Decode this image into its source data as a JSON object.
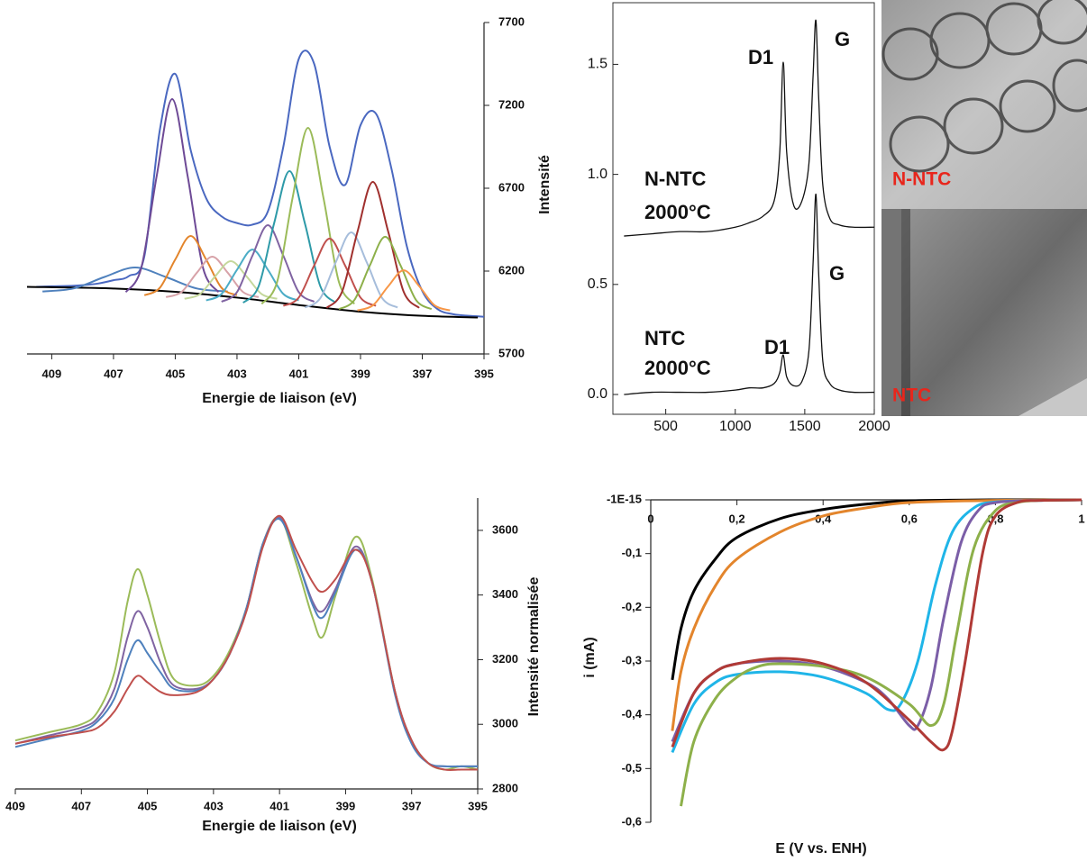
{
  "chart_data": [
    {
      "type": "line",
      "xlabel": "Energie de liaison (eV)",
      "ylabel": "Intensité",
      "xlim": [
        409.8,
        395
      ],
      "xticks": [
        409,
        407,
        405,
        403,
        401,
        399,
        397,
        395
      ],
      "ylim": [
        5700,
        7700
      ],
      "yticks": [
        5700,
        6200,
        6700,
        7200,
        7700
      ],
      "series": [
        {
          "color": "#4a68c0",
          "x": [
            409.5,
            409,
            408.5,
            408,
            407.5,
            407,
            406.5,
            406,
            405.5,
            405,
            404.5,
            404,
            403.5,
            403,
            402.5,
            402,
            401.5,
            401,
            400.5,
            400,
            399.5,
            399,
            398.5,
            398,
            397.5,
            397,
            396.5,
            396,
            395.5,
            395
          ],
          "values": [
            6105,
            6108,
            6110,
            6115,
            6125,
            6145,
            6170,
            6290,
            7050,
            7390,
            6930,
            6640,
            6530,
            6490,
            6480,
            6560,
            6950,
            7480,
            7450,
            6950,
            6720,
            7080,
            7150,
            6820,
            6350,
            6080,
            5970,
            5940,
            5930,
            5925
          ]
        },
        {
          "color": "#000000",
          "x": [
            409.8,
            407,
            405,
            403,
            401,
            399,
            397,
            395.2
          ],
          "values": [
            6105,
            6095,
            6075,
            6040,
            5995,
            5955,
            5930,
            5920
          ]
        },
        {
          "color": "#4f81bd",
          "x": [
            409.3,
            408.3,
            407.3,
            406.3,
            405.3,
            404.3,
            403.3
          ],
          "values": [
            6077,
            6095,
            6164,
            6222,
            6164,
            6095,
            6077
          ]
        },
        {
          "color": "#6e4a96",
          "x": [
            406.6,
            406.1,
            405.6,
            405.1,
            404.6,
            404.1,
            403.6
          ],
          "values": [
            6073,
            6219,
            6775,
            7238,
            6775,
            6219,
            6073
          ]
        },
        {
          "color": "#e3852c",
          "x": [
            406,
            405.5,
            405,
            404.5,
            404,
            403.5,
            403
          ],
          "values": [
            6054,
            6099,
            6270,
            6412,
            6270,
            6099,
            6054
          ]
        },
        {
          "color": "#d7a2a8",
          "x": [
            405.3,
            404.8,
            404.3,
            403.8,
            403.3,
            402.8,
            402.3
          ],
          "values": [
            6043,
            6073,
            6190,
            6287,
            6190,
            6073,
            6043
          ]
        },
        {
          "color": "#c4d79b",
          "x": [
            404.7,
            404.2,
            403.7,
            403.2,
            402.7,
            402.2,
            401.7
          ],
          "values": [
            6033,
            6061,
            6170,
            6260,
            6170,
            6061,
            6033
          ]
        },
        {
          "color": "#4bacc6",
          "x": [
            404,
            403.5,
            403,
            402.5,
            402,
            401.5,
            401
          ],
          "values": [
            6023,
            6062,
            6208,
            6330,
            6208,
            6062,
            6023
          ]
        },
        {
          "color": "#8064a2",
          "x": [
            403.5,
            403,
            402.5,
            402,
            401.5,
            401,
            400.5
          ],
          "values": [
            6015,
            6073,
            6293,
            6477,
            6293,
            6073,
            6015
          ]
        },
        {
          "color": "#2e9aa8",
          "x": [
            402.8,
            402.3,
            401.8,
            401.3,
            400.8,
            400.3,
            399.8
          ],
          "values": [
            6009,
            6108,
            6487,
            6803,
            6487,
            6108,
            6009
          ]
        },
        {
          "color": "#9bbb59",
          "x": [
            402.2,
            401.7,
            401.2,
            400.7,
            400.2,
            399.7,
            399.2
          ],
          "values": [
            6002,
            6135,
            6642,
            7064,
            6642,
            6135,
            6002
          ]
        },
        {
          "color": "#c0504d",
          "x": [
            401.5,
            401,
            400.5,
            400,
            399.5,
            399,
            398.5
          ],
          "values": [
            5990,
            6040,
            6234,
            6396,
            6234,
            6040,
            5990
          ]
        },
        {
          "color": "#a6bddb",
          "x": [
            400.8,
            400.3,
            399.8,
            399.3,
            398.8,
            398.3,
            397.8
          ],
          "values": [
            5980,
            6037,
            6254,
            6434,
            6254,
            6037,
            5980
          ]
        },
        {
          "color": "#a0302e",
          "x": [
            400.1,
            399.6,
            399.1,
            398.6,
            398.1,
            397.6,
            397.1
          ],
          "values": [
            5978,
            6074,
            6436,
            6738,
            6436,
            6074,
            5978
          ]
        },
        {
          "color": "#8db04a",
          "x": [
            399.7,
            399.2,
            398.7,
            398.2,
            397.7,
            397.2,
            396.7
          ],
          "values": [
            5970,
            6025,
            6233,
            6407,
            6233,
            6025,
            5970
          ]
        },
        {
          "color": "#f79646",
          "x": [
            399.1,
            398.6,
            398.1,
            397.6,
            397.1,
            396.6,
            396.1
          ],
          "values": [
            5963,
            5993,
            6109,
            6205,
            6109,
            5993,
            5963
          ]
        }
      ]
    },
    {
      "type": "line",
      "annotations": [
        "D1",
        "G",
        "N-NTC",
        "2000°C",
        "NTC",
        "2000°C",
        "D1",
        "G"
      ],
      "xlim": [
        120,
        2000
      ],
      "xticks": [
        500,
        1000,
        1500,
        2000
      ],
      "ylim": [
        -0.09,
        1.78
      ],
      "yticks": [
        {
          "value": 0,
          "label": "0.0"
        },
        {
          "value": 0.5,
          "label": "0.5"
        },
        {
          "value": 1,
          "label": "1.0"
        },
        {
          "value": 1.5,
          "label": "1.5"
        }
      ],
      "x": [
        200,
        400,
        600,
        800,
        1000,
        1100,
        1200,
        1280,
        1320,
        1345,
        1370,
        1420,
        1480,
        1530,
        1560,
        1580,
        1600,
        1630,
        1680,
        1750,
        1850,
        2000
      ],
      "series": [
        {
          "color": "#111111",
          "values": [
            0.72,
            0.73,
            0.74,
            0.74,
            0.76,
            0.78,
            0.81,
            0.88,
            1.1,
            1.51,
            1.1,
            0.86,
            0.88,
            1.05,
            1.45,
            1.7,
            1.35,
            0.95,
            0.8,
            0.77,
            0.76,
            0.76
          ]
        },
        {
          "color": "#111111",
          "values": [
            0.0,
            0.01,
            0.01,
            0.01,
            0.02,
            0.03,
            0.03,
            0.05,
            0.1,
            0.18,
            0.08,
            0.04,
            0.06,
            0.2,
            0.6,
            0.91,
            0.55,
            0.15,
            0.05,
            0.02,
            0.01,
            0.01
          ]
        }
      ]
    },
    {
      "type": "line",
      "xlabel": "Energie de liaison (eV)",
      "ylabel": "Intensité normalisée",
      "xlim": [
        409,
        395
      ],
      "xticks": [
        409,
        407,
        405,
        403,
        401,
        399,
        397,
        395
      ],
      "ylim": [
        2800,
        3700
      ],
      "yticks": [
        2800,
        3000,
        3200,
        3400,
        3600
      ],
      "x": [
        409,
        408,
        407,
        406.5,
        406,
        405.6,
        405.3,
        405,
        404.6,
        404.2,
        403.5,
        403,
        402.5,
        402,
        401.5,
        401,
        400.5,
        400,
        399.7,
        399.3,
        398.7,
        398.2,
        397.5,
        397,
        396.5,
        396,
        395.5,
        395
      ],
      "series": [
        {
          "color": "#9bbb59",
          "values": [
            2950,
            2975,
            3000,
            3040,
            3160,
            3380,
            3480,
            3400,
            3250,
            3140,
            3120,
            3150,
            3230,
            3360,
            3560,
            3640,
            3500,
            3330,
            3270,
            3400,
            3580,
            3450,
            3100,
            2950,
            2880,
            2860,
            2870,
            2860
          ]
        },
        {
          "color": "#8064a2",
          "values": [
            2940,
            2965,
            2990,
            3020,
            3110,
            3270,
            3350,
            3300,
            3190,
            3120,
            3110,
            3140,
            3220,
            3360,
            3560,
            3640,
            3520,
            3380,
            3350,
            3420,
            3550,
            3440,
            3100,
            2950,
            2880,
            2870,
            2870,
            2870
          ]
        },
        {
          "color": "#4f81bd",
          "values": [
            2930,
            2955,
            2980,
            3010,
            3080,
            3200,
            3260,
            3220,
            3160,
            3110,
            3105,
            3140,
            3220,
            3360,
            3560,
            3635,
            3520,
            3370,
            3330,
            3410,
            3540,
            3440,
            3090,
            2940,
            2880,
            2870,
            2870,
            2870
          ]
        },
        {
          "color": "#c0504d",
          "values": [
            2940,
            2960,
            2975,
            2990,
            3040,
            3110,
            3150,
            3130,
            3100,
            3090,
            3100,
            3140,
            3220,
            3350,
            3550,
            3645,
            3540,
            3440,
            3410,
            3450,
            3540,
            3440,
            3100,
            2950,
            2880,
            2860,
            2860,
            2860
          ]
        }
      ]
    },
    {
      "type": "line",
      "xlabel": "E (V vs. ENH)",
      "ylabel": "i (mA)",
      "xlim": [
        0,
        1
      ],
      "xticks": [
        0,
        {
          "value": 0.2,
          "label": "0,2"
        },
        {
          "value": 0.4,
          "label": "0,4"
        },
        {
          "value": 0.6,
          "label": "0,6"
        },
        {
          "value": 0.8,
          "label": "0,8"
        },
        1
      ],
      "ylim": [
        -0.6,
        0
      ],
      "yticks": [
        {
          "value": -1e-15,
          "label": "-1E-15"
        },
        {
          "value": -0.1,
          "label": "-0,1"
        },
        {
          "value": -0.2,
          "label": "-0,2"
        },
        {
          "value": -0.3,
          "label": "-0,3"
        },
        {
          "value": -0.4,
          "label": "-0,4"
        },
        {
          "value": -0.5,
          "label": "-0,5"
        },
        {
          "value": -0.6,
          "label": "-0,6"
        }
      ],
      "series": [
        {
          "color": "#000000",
          "x": [
            0.05,
            0.07,
            0.1,
            0.15,
            0.2,
            0.3,
            0.4,
            0.5,
            0.6,
            0.8,
            1.0
          ],
          "values": [
            -0.335,
            -0.24,
            -0.17,
            -0.11,
            -0.07,
            -0.035,
            -0.018,
            -0.008,
            -0.002,
            0,
            0
          ]
        },
        {
          "color": "#e3852c",
          "x": [
            0.05,
            0.07,
            0.1,
            0.15,
            0.2,
            0.3,
            0.4,
            0.5,
            0.6,
            0.8,
            1.0
          ],
          "values": [
            -0.43,
            -0.32,
            -0.24,
            -0.16,
            -0.11,
            -0.06,
            -0.03,
            -0.015,
            -0.005,
            -0.001,
            0
          ]
        },
        {
          "color": "#1fb5e8",
          "x": [
            0.05,
            0.1,
            0.15,
            0.2,
            0.3,
            0.4,
            0.5,
            0.55,
            0.58,
            0.62,
            0.66,
            0.7,
            0.75,
            0.8,
            0.9,
            1.0
          ],
          "values": [
            -0.47,
            -0.38,
            -0.34,
            -0.325,
            -0.32,
            -0.33,
            -0.36,
            -0.39,
            -0.38,
            -0.3,
            -0.16,
            -0.06,
            -0.015,
            -0.004,
            -0.001,
            0
          ]
        },
        {
          "color": "#7b5ea7",
          "x": [
            0.05,
            0.1,
            0.15,
            0.2,
            0.3,
            0.4,
            0.5,
            0.55,
            0.6,
            0.62,
            0.65,
            0.68,
            0.72,
            0.76,
            0.8,
            0.9,
            1.0
          ],
          "values": [
            -0.45,
            -0.36,
            -0.32,
            -0.305,
            -0.3,
            -0.31,
            -0.34,
            -0.37,
            -0.42,
            -0.42,
            -0.35,
            -0.22,
            -0.08,
            -0.02,
            -0.005,
            -0.001,
            0
          ]
        },
        {
          "color": "#8db04a",
          "x": [
            0.07,
            0.1,
            0.15,
            0.2,
            0.25,
            0.3,
            0.4,
            0.5,
            0.6,
            0.65,
            0.68,
            0.71,
            0.75,
            0.8,
            0.85,
            0.9,
            1.0
          ],
          "values": [
            -0.57,
            -0.45,
            -0.37,
            -0.33,
            -0.31,
            -0.305,
            -0.31,
            -0.33,
            -0.38,
            -0.42,
            -0.38,
            -0.25,
            -0.09,
            -0.02,
            -0.005,
            -0.001,
            0
          ]
        },
        {
          "color": "#b03a36",
          "x": [
            0.05,
            0.1,
            0.15,
            0.2,
            0.3,
            0.4,
            0.5,
            0.6,
            0.65,
            0.68,
            0.7,
            0.73,
            0.77,
            0.8,
            0.85,
            0.9,
            1.0
          ],
          "values": [
            -0.46,
            -0.36,
            -0.32,
            -0.305,
            -0.295,
            -0.305,
            -0.34,
            -0.41,
            -0.45,
            -0.465,
            -0.43,
            -0.3,
            -0.1,
            -0.03,
            -0.005,
            -0.001,
            0
          ]
        }
      ]
    }
  ],
  "images": [
    {
      "label": "N-NTC"
    },
    {
      "label": "NTC"
    }
  ]
}
